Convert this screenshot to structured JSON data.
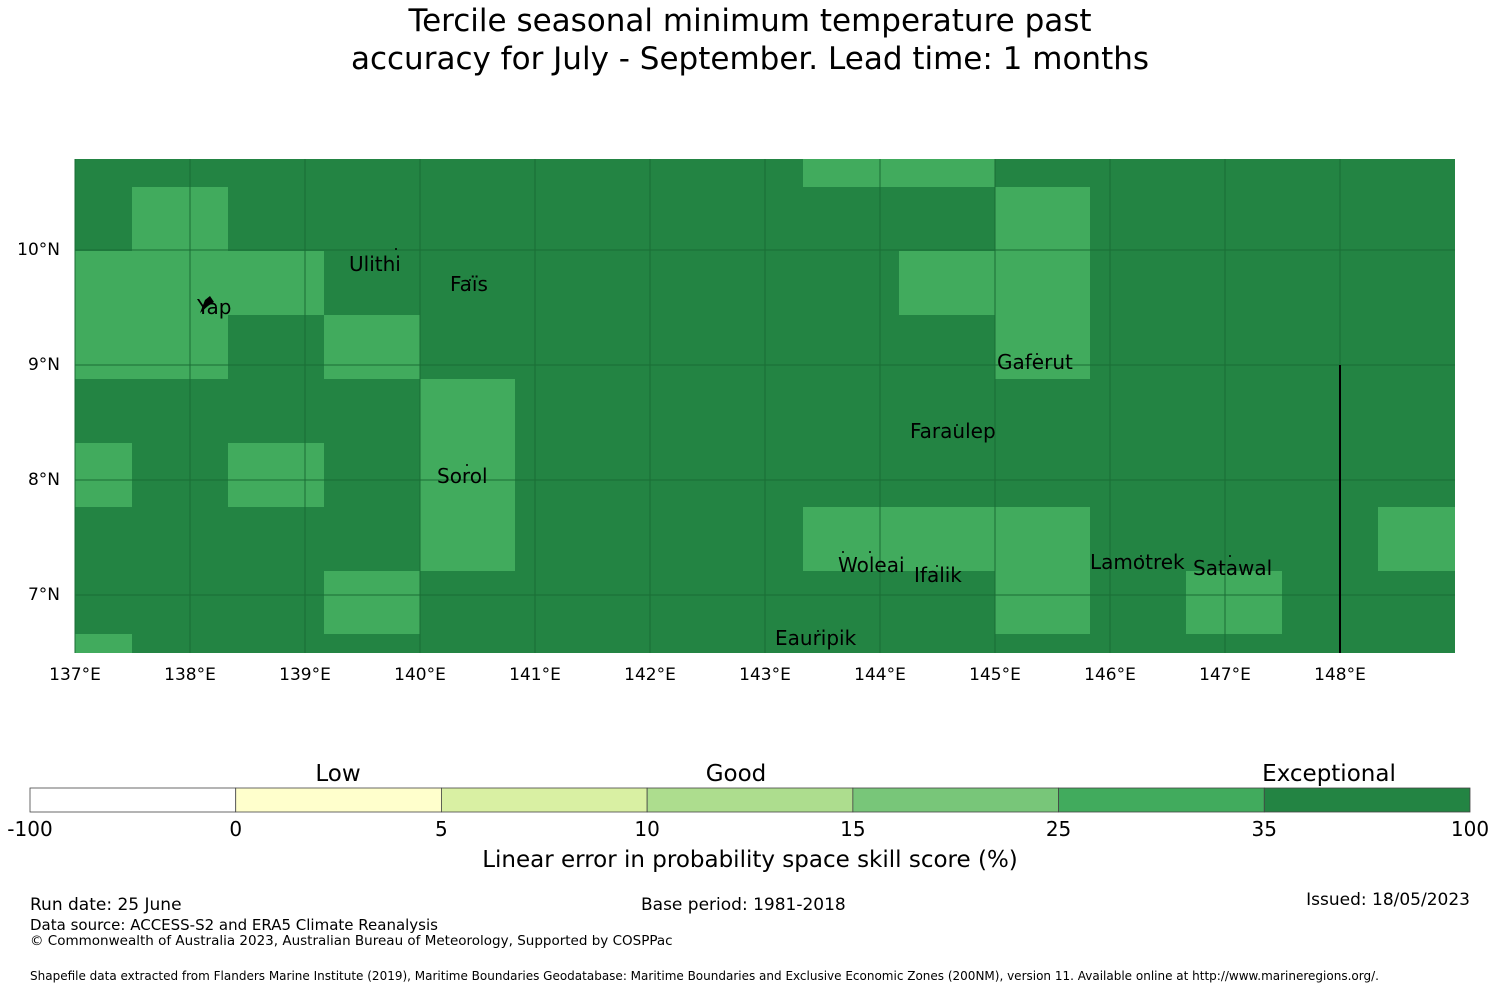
{
  "title_line1": "Tercile seasonal minimum temperature past",
  "title_line2": "accuracy for July - September. Lead time: 1 months",
  "map": {
    "x_ticks": [
      "137°E",
      "138°E",
      "139°E",
      "140°E",
      "141°E",
      "142°E",
      "143°E",
      "144°E",
      "145°E",
      "146°E",
      "147°E",
      "148°E"
    ],
    "y_ticks": [
      "10°N",
      "9°N",
      "8°N",
      "7°N"
    ],
    "colors": {
      "exceptional": "#238443",
      "very_good": "#41ab5d"
    },
    "places": [
      {
        "name": "Ulithi"
      },
      {
        "name": "Faïs"
      },
      {
        "name": "Yap"
      },
      {
        "name": "Gaferut"
      },
      {
        "name": "Faraulep"
      },
      {
        "name": "Sorol"
      },
      {
        "name": "Woleai"
      },
      {
        "name": "Ifalik"
      },
      {
        "name": "Lamotrek"
      },
      {
        "name": "Satawal"
      },
      {
        "name": "Eauripik"
      }
    ]
  },
  "colorbar": {
    "categories": [
      "Low",
      "Good",
      "Exceptional"
    ],
    "ticks": [
      "-100",
      "0",
      "5",
      "10",
      "15",
      "25",
      "35",
      "100"
    ],
    "colors": [
      "#ffffff",
      "#ffffcc",
      "#d9f0a3",
      "#addd8e",
      "#78c679",
      "#41ab5d",
      "#238443"
    ],
    "label": "Linear error in probability space skill score (%)"
  },
  "footer": {
    "run_date": "Run date: 25 June",
    "base_period": "Base period: 1981-2018",
    "issued": "Issued: 18/05/2023",
    "data_source": "Data source: ACCESS-S2 and ERA5 Climate Reanalysis",
    "copyright": "© Commonwealth of Australia 2023, Australian Bureau of Meteorology, Supported by COSPPac",
    "shapefile": "Shapefile data extracted from Flanders Marine Institute (2019), Maritime Boundaries Geodatabase: Maritime Boundaries and Exclusive Economic Zones (200NM), version 11. Available online at http://www.marineregions.org/."
  }
}
